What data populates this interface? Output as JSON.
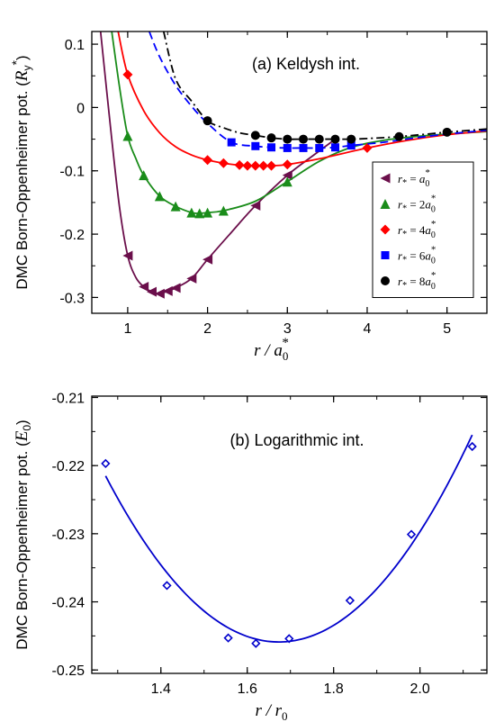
{
  "chart_data": [
    {
      "type": "scatter",
      "panel": "a",
      "annotation": "(a) Keldysh int.",
      "ylabel": "DMC Born-Oppenheimer pot. (R_y*)",
      "ylabel_main": "DMC Born-Oppenheimer pot. (",
      "ylabel_symbol": "R",
      "ylabel_sub": "y",
      "ylabel_sup": "*",
      "ylabel_close": ")",
      "xlabel": "r / a0*",
      "xlabel_main": "r / a",
      "xlabel_sub": "0",
      "xlabel_sup": "*",
      "xlim": [
        0.55,
        5.5
      ],
      "ylim": [
        -0.325,
        0.12
      ],
      "xticks": [
        1,
        2,
        3,
        4,
        5
      ],
      "xtick_labels": [
        "1",
        "2",
        "3",
        "4",
        "5"
      ],
      "yticks": [
        0.1,
        0,
        -0.1,
        -0.2,
        -0.3
      ],
      "ytick_labels": [
        "0.1",
        "0",
        "-0.1",
        "-0.2",
        "-0.3"
      ],
      "legend_position": "right",
      "series": [
        {
          "name": "r* = a0*",
          "legend_label": "r* = a0*",
          "legend_main": "r",
          "legend_sub": "*",
          "legend_eq": " = ",
          "legend_coef": "",
          "legend_a": "a",
          "legend_a_sub": "0",
          "legend_a_sup": "*",
          "color": "#6b0f4b",
          "marker": "triangle-left",
          "line_style": "solid",
          "x": [
            1.0,
            1.2,
            1.3,
            1.4,
            1.5,
            1.6,
            1.8,
            2.0,
            2.6,
            3.0
          ],
          "y": [
            -0.234,
            -0.283,
            -0.291,
            -0.294,
            -0.29,
            -0.285,
            -0.27,
            -0.24,
            -0.155,
            -0.107
          ],
          "curve_x": [
            0.66,
            0.8,
            0.9,
            1.0,
            1.1,
            1.2,
            1.3,
            1.4,
            1.5,
            1.6,
            1.8,
            2.0,
            2.3,
            2.6,
            3.0,
            3.3,
            3.6
          ],
          "curve_y": [
            0.12,
            -0.05,
            -0.16,
            -0.234,
            -0.268,
            -0.283,
            -0.291,
            -0.294,
            -0.29,
            -0.285,
            -0.27,
            -0.24,
            -0.197,
            -0.155,
            -0.107,
            -0.078,
            -0.05
          ]
        },
        {
          "name": "r* = 2a0*",
          "legend_label": "r* = 2a0*",
          "legend_main": "r",
          "legend_sub": "*",
          "legend_eq": " = ",
          "legend_coef": "2",
          "legend_a": "a",
          "legend_a_sub": "0",
          "legend_a_sup": "*",
          "color": "#1a8c1a",
          "marker": "triangle-up",
          "line_style": "solid",
          "x": [
            1.0,
            1.2,
            1.4,
            1.6,
            1.8,
            1.9,
            2.0,
            2.2,
            3.0
          ],
          "y": [
            -0.045,
            -0.107,
            -0.14,
            -0.156,
            -0.166,
            -0.167,
            -0.166,
            -0.163,
            -0.117
          ],
          "curve_x": [
            0.8,
            0.9,
            1.0,
            1.1,
            1.2,
            1.4,
            1.6,
            1.8,
            1.9,
            2.0,
            2.2,
            2.6,
            3.0,
            3.4,
            3.8,
            4.2,
            4.6,
            5.0,
            5.5
          ],
          "curve_y": [
            0.12,
            0.03,
            -0.045,
            -0.08,
            -0.107,
            -0.14,
            -0.156,
            -0.166,
            -0.167,
            -0.166,
            -0.163,
            -0.148,
            -0.117,
            -0.085,
            -0.063,
            -0.052,
            -0.046,
            -0.042,
            -0.038
          ]
        },
        {
          "name": "r* = 4a0*",
          "legend_label": "r* = 4a0*",
          "legend_main": "r",
          "legend_sub": "*",
          "legend_eq": " = ",
          "legend_coef": "4",
          "legend_a": "a",
          "legend_a_sub": "0",
          "legend_a_sup": "*",
          "color": "#ff0000",
          "marker": "diamond",
          "line_style": "solid",
          "x": [
            1.0,
            2.0,
            2.2,
            2.4,
            2.5,
            2.6,
            2.7,
            2.8,
            3.0,
            4.0
          ],
          "y": [
            0.052,
            -0.083,
            -0.088,
            -0.091,
            -0.092,
            -0.092,
            -0.092,
            -0.092,
            -0.09,
            -0.064
          ],
          "curve_x": [
            0.88,
            1.0,
            1.2,
            1.4,
            1.6,
            1.8,
            2.0,
            2.2,
            2.4,
            2.6,
            2.8,
            3.0,
            3.4,
            4.0,
            4.5,
            5.0,
            5.5
          ],
          "curve_y": [
            0.12,
            0.052,
            -0.005,
            -0.04,
            -0.062,
            -0.075,
            -0.083,
            -0.088,
            -0.091,
            -0.092,
            -0.092,
            -0.09,
            -0.081,
            -0.064,
            -0.052,
            -0.043,
            -0.037
          ]
        },
        {
          "name": "r* = 6a0*",
          "legend_label": "r* = 6a0*",
          "legend_main": "r",
          "legend_sub": "*",
          "legend_eq": " = ",
          "legend_coef": "6",
          "legend_a": "a",
          "legend_a_sub": "0",
          "legend_a_sup": "*",
          "color": "#0000ff",
          "marker": "square",
          "line_style": "dashed",
          "x": [
            2.3,
            2.6,
            2.8,
            3.0,
            3.2,
            3.4,
            3.6,
            3.8
          ],
          "y": [
            -0.055,
            -0.061,
            -0.063,
            -0.064,
            -0.064,
            -0.064,
            -0.063,
            -0.06
          ],
          "curve_x": [
            1.27,
            1.4,
            1.6,
            1.8,
            2.0,
            2.3,
            2.6,
            2.8,
            3.0,
            3.2,
            3.4,
            3.6,
            3.8,
            4.2,
            4.6,
            5.0,
            5.5
          ],
          "curve_y": [
            0.12,
            0.08,
            0.035,
            0.002,
            -0.025,
            -0.055,
            -0.061,
            -0.063,
            -0.064,
            -0.064,
            -0.064,
            -0.063,
            -0.06,
            -0.055,
            -0.048,
            -0.042,
            -0.036
          ]
        },
        {
          "name": "r* = 8a0*",
          "legend_label": "r* = 8a0*",
          "legend_main": "r",
          "legend_sub": "*",
          "legend_eq": " = ",
          "legend_coef": "8",
          "legend_a": "a",
          "legend_a_sub": "0",
          "legend_a_sup": "*",
          "color": "#000000",
          "marker": "circle",
          "line_style": "dashdot",
          "x": [
            2.0,
            2.6,
            2.8,
            3.0,
            3.2,
            3.4,
            3.6,
            3.8,
            4.4,
            5.0
          ],
          "y": [
            -0.021,
            -0.044,
            -0.048,
            -0.05,
            -0.05,
            -0.05,
            -0.05,
            -0.05,
            -0.046,
            -0.039
          ],
          "curve_x": [
            1.45,
            1.6,
            1.8,
            2.0,
            2.2,
            2.4,
            2.6,
            2.8,
            3.0,
            3.2,
            3.4,
            3.6,
            3.8,
            4.0,
            4.4,
            5.0,
            5.5
          ],
          "curve_y": [
            0.12,
            0.045,
            0.01,
            -0.021,
            -0.032,
            -0.04,
            -0.044,
            -0.048,
            -0.05,
            -0.05,
            -0.05,
            -0.05,
            -0.05,
            -0.049,
            -0.046,
            -0.039,
            -0.034
          ]
        }
      ]
    },
    {
      "type": "scatter",
      "panel": "b",
      "annotation": "(b) Logarithmic int.",
      "ylabel": "DMC Born-Oppenheimer pot. (E0)",
      "ylabel_main": "DMC Born-Oppenheimer pot. (",
      "ylabel_symbol": "E",
      "ylabel_sub": "0",
      "ylabel_close": ")",
      "xlabel": "r / r0",
      "xlabel_main": "r / r",
      "xlabel_sub": "0",
      "xlim": [
        1.24,
        2.155
      ],
      "ylim": [
        -0.2505,
        -0.2098
      ],
      "xticks": [
        1.4,
        1.6,
        1.8,
        2.0
      ],
      "xtick_labels": [
        "1.4",
        "1.6",
        "1.8",
        "2.0"
      ],
      "yticks": [
        -0.21,
        -0.22,
        -0.23,
        -0.24,
        -0.25
      ],
      "ytick_labels": [
        "-0.21",
        "-0.22",
        "-0.23",
        "-0.24",
        "-0.25"
      ],
      "series": [
        {
          "color": "#0000cc",
          "marker": "diamond-open",
          "x": [
            1.272,
            1.414,
            1.556,
            1.62,
            1.697,
            1.838,
            1.98,
            2.121
          ],
          "y": [
            -0.2197,
            -0.2376,
            -0.2453,
            -0.2461,
            -0.2454,
            -0.2398,
            -0.2301,
            -0.2172
          ]
        }
      ]
    }
  ]
}
